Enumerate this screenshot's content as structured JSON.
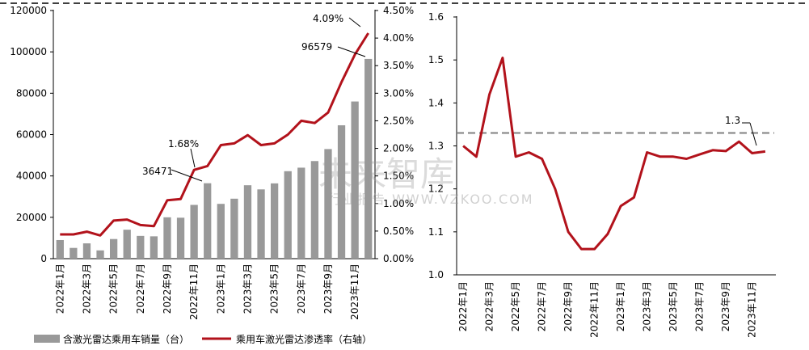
{
  "chart_data": [
    {
      "type": "bar+line",
      "categories": [
        "2022年1月",
        "2022年2月",
        "2022年3月",
        "2022年4月",
        "2022年5月",
        "2022年6月",
        "2022年7月",
        "2022年8月",
        "2022年9月",
        "2022年10月",
        "2022年11月",
        "2022年12月",
        "2023年1月",
        "2023年2月",
        "2023年3月",
        "2023年4月",
        "2023年5月",
        "2023年6月",
        "2023年7月",
        "2023年8月",
        "2023年9月",
        "2023年10月",
        "2023年11月",
        "2023年12月"
      ],
      "x_tick_labels": [
        "2022年1月",
        "2022年3月",
        "2022年5月",
        "2022年7月",
        "2022年9月",
        "2022年11月",
        "2023年1月",
        "2023年3月",
        "2023年5月",
        "2023年7月",
        "2023年9月",
        "2023年11月"
      ],
      "series": [
        {
          "name": "含激光雷达乘用车销量（台）",
          "axis": "left",
          "kind": "bar",
          "color": "#999999",
          "values": [
            9000,
            5200,
            7400,
            4000,
            9500,
            14000,
            11000,
            10800,
            20000,
            19800,
            26000,
            36471,
            26500,
            29000,
            35500,
            33500,
            36400,
            42300,
            44000,
            47200,
            53000,
            64500,
            76000,
            96579
          ]
        },
        {
          "name": "乘用车激光雷达渗透率（右轴）",
          "axis": "right",
          "kind": "line",
          "color": "#B2121B",
          "values": [
            0.44,
            0.44,
            0.49,
            0.42,
            0.69,
            0.71,
            0.61,
            0.59,
            1.06,
            1.08,
            1.61,
            1.68,
            2.06,
            2.09,
            2.24,
            2.06,
            2.09,
            2.25,
            2.5,
            2.46,
            2.65,
            3.2,
            3.7,
            4.09
          ]
        }
      ],
      "y_left": {
        "min": 0,
        "max": 120000,
        "ticks": [
          "0",
          "20000",
          "40000",
          "60000",
          "80000",
          "100000",
          "120000"
        ]
      },
      "y_right": {
        "min": 0,
        "max": 4.5,
        "ticks": [
          "0.00%",
          "0.50%",
          "1.00%",
          "1.50%",
          "2.00%",
          "2.50%",
          "3.00%",
          "3.50%",
          "4.00%",
          "4.50%"
        ]
      },
      "annotations": [
        {
          "text": "4.09%",
          "series": 1,
          "index": 23
        },
        {
          "text": "96579",
          "series": 0,
          "index": 23
        },
        {
          "text": "1.68%",
          "series": 1,
          "index": 11
        },
        {
          "text": "36471",
          "series": 0,
          "index": 11
        }
      ],
      "legend": {
        "placement": "bottom"
      }
    },
    {
      "type": "line",
      "categories": [
        "2022年1月",
        "2022年2月",
        "2022年3月",
        "2022年4月",
        "2022年5月",
        "2022年6月",
        "2022年7月",
        "2022年8月",
        "2022年9月",
        "2022年10月",
        "2022年11月",
        "2022年12月",
        "2023年1月",
        "2023年2月",
        "2023年3月",
        "2023年4月",
        "2023年5月",
        "2023年6月",
        "2023年7月",
        "2023年8月",
        "2023年9月",
        "2023年10月",
        "2023年11月",
        "2023年12月"
      ],
      "x_tick_labels": [
        "2022年1月",
        "2022年3月",
        "2022年5月",
        "2022年7月",
        "2022年9月",
        "2022年11月",
        "2023年1月",
        "2023年3月",
        "2023年5月",
        "2023年7月",
        "2023年9月",
        "2023年11月"
      ],
      "series": [
        {
          "color": "#B2121B",
          "values": [
            1.3,
            1.275,
            1.42,
            1.505,
            1.275,
            1.285,
            1.27,
            1.2,
            1.1,
            1.06,
            1.06,
            1.095,
            1.16,
            1.18,
            1.285,
            1.275,
            1.275,
            1.27,
            1.28,
            1.29,
            1.288,
            1.31,
            1.283,
            1.287
          ]
        }
      ],
      "reference_line": {
        "value": 1.33,
        "style": "dashed",
        "color": "#808080"
      },
      "y": {
        "min": 1.0,
        "max": 1.6,
        "ticks": [
          "1.0",
          "1.1",
          "1.2",
          "1.3",
          "1.4",
          "1.5",
          "1.6"
        ]
      },
      "annotations": [
        {
          "text": "1.3",
          "target": "reference_line"
        }
      ]
    }
  ],
  "watermark": {
    "main": "未来智库",
    "sub": "行业报告 WWW.VZKOO.COM"
  }
}
